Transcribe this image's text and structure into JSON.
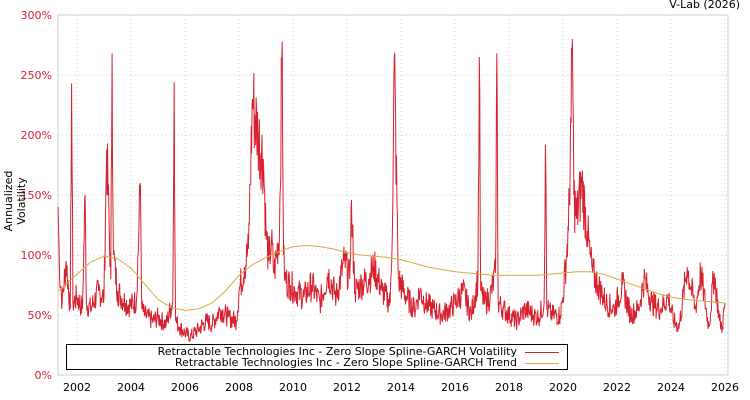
{
  "credit": "V-Lab (2026)",
  "legend": {
    "volatility_label": "Retractable Technologies Inc - Zero Slope Spline-GARCH Volatility",
    "trend_label": "Retractable Technologies Inc - Zero Slope Spline-GARCH Trend"
  },
  "colors": {
    "volatility": "#d7212f",
    "trend": "#d4aa4a",
    "axis_text": "#d7212f",
    "grid": "#cccccc"
  },
  "chart_data": {
    "type": "line",
    "title": "",
    "xlabel": "",
    "ylabel": "Annualized Volatility",
    "xlim": [
      2001.3,
      2026.0
    ],
    "ylim": [
      0,
      300
    ],
    "x_ticks": [
      2002,
      2004,
      2006,
      2008,
      2010,
      2012,
      2014,
      2016,
      2018,
      2020,
      2022,
      2024,
      2026
    ],
    "y_ticks": [
      "0%",
      "50%",
      "100%",
      "150%",
      "200%",
      "250%",
      "300%"
    ],
    "y_tick_values": [
      0,
      50,
      100,
      150,
      200,
      250,
      300
    ],
    "grid": true,
    "legend_position": "bottom-left inside",
    "series": [
      {
        "name": "Retractable Technologies Inc - Zero Slope Spline-GARCH Volatility",
        "x": [
          2001.3,
          2001.35,
          2001.45,
          2001.6,
          2001.75,
          2001.8,
          2001.85,
          2002.0,
          2002.2,
          2002.3,
          2002.35,
          2002.5,
          2002.8,
          2003.0,
          2003.1,
          2003.25,
          2003.3,
          2003.35,
          2003.5,
          2003.8,
          2004.0,
          2004.2,
          2004.35,
          2004.4,
          2004.5,
          2004.8,
          2005.0,
          2005.3,
          2005.55,
          2005.6,
          2005.65,
          2005.8,
          2006.0,
          2006.2,
          2006.5,
          2006.8,
          2007.0,
          2007.3,
          2007.6,
          2007.9,
          2008.0,
          2008.2,
          2008.35,
          2008.5,
          2008.7,
          2008.9,
          2009.0,
          2009.1,
          2009.2,
          2009.3,
          2009.5,
          2009.6,
          2009.65,
          2009.7,
          2009.9,
          2010.1,
          2010.4,
          2010.7,
          2011.0,
          2011.3,
          2011.6,
          2011.9,
          2012.1,
          2012.15,
          2012.3,
          2012.5,
          2012.8,
          2013.0,
          2013.3,
          2013.6,
          2013.7,
          2013.75,
          2013.9,
          2014.2,
          2014.5,
          2014.7,
          2014.9,
          2015.2,
          2015.5,
          2015.8,
          2016.0,
          2016.3,
          2016.6,
          2016.85,
          2016.9,
          2016.95,
          2017.1,
          2017.3,
          2017.5,
          2017.55,
          2017.6,
          2017.8,
          2018.0,
          2018.3,
          2018.6,
          2018.9,
          2019.1,
          2019.3,
          2019.35,
          2019.4,
          2019.6,
          2019.9,
          2020.0,
          2020.2,
          2020.3,
          2020.35,
          2020.4,
          2020.5,
          2020.7,
          2020.9,
          2021.0,
          2021.1,
          2021.3,
          2021.6,
          2021.9,
          2022.2,
          2022.5,
          2022.8,
          2023.0,
          2023.3,
          2023.6,
          2023.9,
          2024.1,
          2024.3,
          2024.6,
          2024.9,
          2025.1,
          2025.4,
          2025.6,
          2025.8,
          2025.9,
          2026.0
        ],
        "values": [
          140,
          90,
          60,
          95,
          55,
          243,
          60,
          65,
          55,
          150,
          60,
          55,
          70,
          65,
          188,
          80,
          268,
          100,
          70,
          60,
          58,
          62,
          160,
          55,
          50,
          45,
          48,
          42,
          62,
          244,
          45,
          40,
          35,
          32,
          38,
          45,
          42,
          55,
          48,
          45,
          70,
          90,
          105,
          230,
          200,
          180,
          120,
          95,
          110,
          85,
          120,
          278,
          100,
          80,
          75,
          70,
          65,
          75,
          60,
          85,
          65,
          95,
          80,
          140,
          70,
          75,
          80,
          90,
          70,
          60,
          150,
          265,
          80,
          65,
          55,
          70,
          60,
          55,
          50,
          55,
          60,
          70,
          50,
          80,
          265,
          70,
          60,
          65,
          85,
          268,
          60,
          55,
          50,
          45,
          55,
          50,
          48,
          60,
          192,
          55,
          50,
          50,
          65,
          120,
          210,
          280,
          150,
          130,
          160,
          120,
          100,
          85,
          75,
          60,
          55,
          75,
          50,
          55,
          80,
          60,
          55,
          65,
          45,
          40,
          90,
          55,
          85,
          40,
          85,
          45,
          40,
          60
        ]
      },
      {
        "name": "Retractable Technologies Inc - Zero Slope Spline-GARCH Trend",
        "x": [
          2001.3,
          2002.0,
          2002.5,
          2003.0,
          2003.5,
          2004.0,
          2004.5,
          2005.0,
          2005.5,
          2006.0,
          2006.5,
          2007.0,
          2007.5,
          2008.0,
          2008.5,
          2009.0,
          2009.5,
          2010.0,
          2010.5,
          2011.0,
          2011.5,
          2012.0,
          2012.5,
          2013.0,
          2013.5,
          2014.0,
          2014.5,
          2015.0,
          2015.5,
          2016.0,
          2016.5,
          2017.0,
          2017.5,
          2018.0,
          2018.5,
          2019.0,
          2019.5,
          2020.0,
          2020.5,
          2021.0,
          2021.5,
          2022.0,
          2022.5,
          2023.0,
          2023.5,
          2024.0,
          2024.5,
          2025.0,
          2025.5,
          2026.0
        ],
        "values": [
          70,
          84,
          94,
          99,
          97,
          89,
          76,
          63,
          56,
          54,
          55,
          60,
          70,
          83,
          92,
          98,
          103,
          107,
          108,
          107,
          105,
          102,
          100,
          99,
          98,
          96,
          93,
          90,
          88,
          86,
          85,
          84,
          83,
          83,
          83,
          83,
          84,
          85,
          86,
          86,
          84,
          80,
          76,
          72,
          68,
          65,
          63,
          62,
          61,
          60
        ]
      }
    ]
  }
}
